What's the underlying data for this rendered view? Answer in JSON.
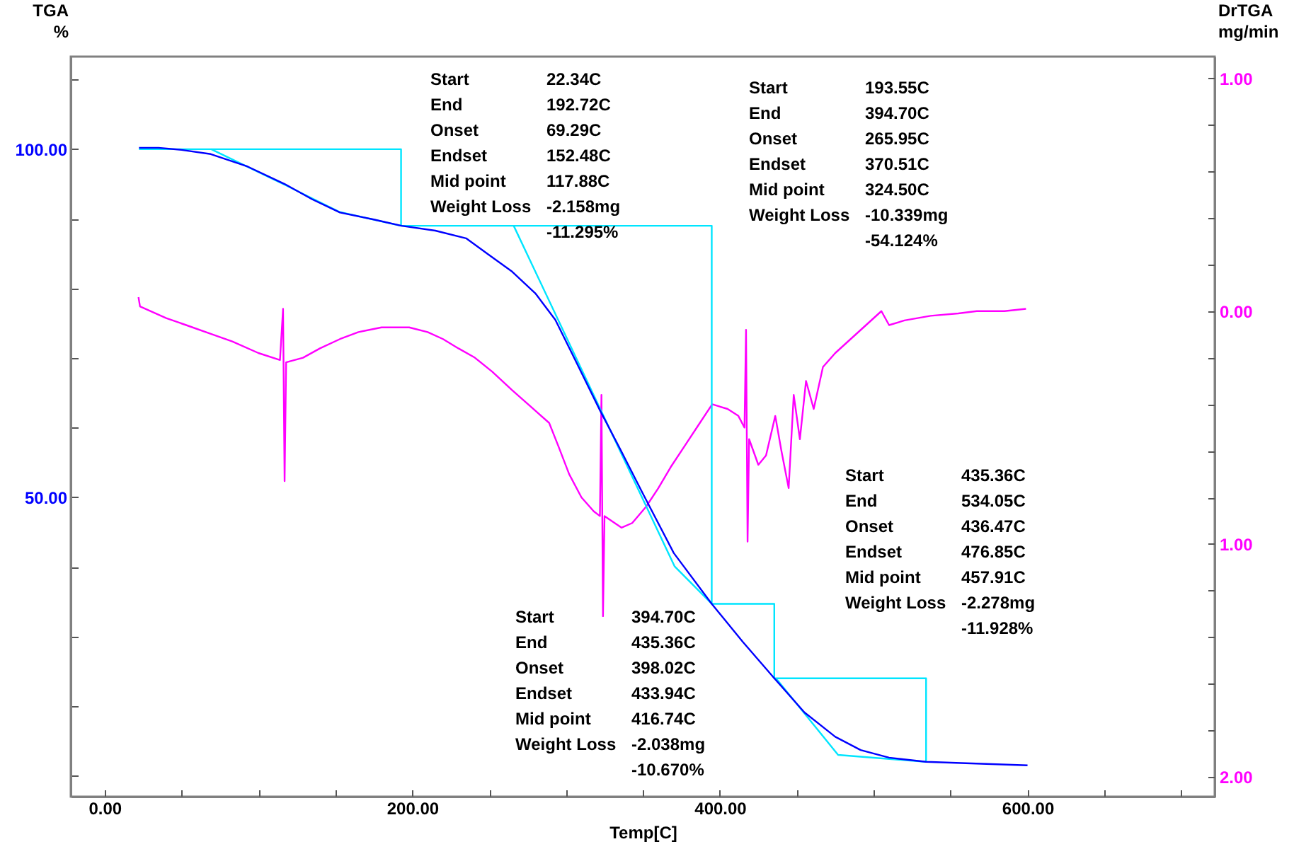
{
  "chart_data": {
    "type": "line",
    "xlabel": "Temp[C]",
    "ylabel": "TGA %",
    "y2label": "DrTGA mg/min",
    "xlim": [
      -22,
      721.7
    ],
    "xticks": [
      {
        "value": 0,
        "label": "0.00"
      },
      {
        "value": 50,
        "label": null
      },
      {
        "value": 100,
        "label": null
      },
      {
        "value": 150,
        "label": null
      },
      {
        "value": 200,
        "label": "200.00"
      },
      {
        "value": 250,
        "label": null
      },
      {
        "value": 300,
        "label": null
      },
      {
        "value": 350,
        "label": null
      },
      {
        "value": 400,
        "label": "400.00"
      },
      {
        "value": 450,
        "label": null
      },
      {
        "value": 500,
        "label": null
      },
      {
        "value": 550,
        "label": null
      },
      {
        "value": 600,
        "label": "600.00"
      },
      {
        "value": 650,
        "label": null
      },
      {
        "value": 700,
        "label": null
      }
    ],
    "ylim": [
      7.0,
      113.3
    ],
    "yticks": [
      {
        "value": 10,
        "label": null
      },
      {
        "value": 20,
        "label": null
      },
      {
        "value": 30,
        "label": null
      },
      {
        "value": 40,
        "label": null
      },
      {
        "value": 50,
        "label": "50.00"
      },
      {
        "value": 60,
        "label": null
      },
      {
        "value": 70,
        "label": null
      },
      {
        "value": 80,
        "label": null
      },
      {
        "value": 90,
        "label": null
      },
      {
        "value": 100,
        "label": "100.00"
      },
      {
        "value": 110,
        "label": null
      }
    ],
    "y2lim": [
      -2.085,
      1.093
    ],
    "y2ticks": [
      {
        "value": -2,
        "label": "2.00"
      },
      {
        "value": -1.8,
        "label": null
      },
      {
        "value": -1.6,
        "label": null
      },
      {
        "value": -1.4,
        "label": null
      },
      {
        "value": -1.2,
        "label": null
      },
      {
        "value": -1,
        "label": "1.00"
      },
      {
        "value": -0.8,
        "label": null
      },
      {
        "value": -0.6,
        "label": null
      },
      {
        "value": -0.4,
        "label": null
      },
      {
        "value": -0.2,
        "label": null
      },
      {
        "value": 0,
        "label": "0.00"
      },
      {
        "value": 0.2,
        "label": null
      },
      {
        "value": 0.4,
        "label": null
      },
      {
        "value": 0.6,
        "label": null
      },
      {
        "value": 0.8,
        "label": null
      },
      {
        "value": 1,
        "label": "1.00"
      }
    ],
    "annotations": [
      "Start\t22.34C\nEnd\t192.72C\nOnset\t69.29C\nEndset\t152.48C\nMid point\t117.88C\nWeight Loss\t-2.158mg\n\t-11.295%",
      "Start\t193.55C\nEnd\t394.70C\nOnset\t265.95C\nEndset\t370.51C\nMid point\t324.50C\nWeight Loss\t-10.339mg\n\t-54.124%",
      "Start\t435.36C\nEnd\t534.05C\nOnset\t436.47C\nEndset\t476.85C\nMid point\t457.91C\nWeight Loss\t-2.278mg\n\t-11.928%",
      "Start\t394.70C\nEnd\t435.36C\nOnset\t398.02C\nEndset\t433.94C\nMid point\t416.74C\nWeight Loss\t-2.038mg\n\t-10.670%"
    ],
    "series": [
      {
        "color": "#00e5ff",
        "x": [
          22.34,
          192.72,
          192.72,
          394.7,
          394.7,
          435.36,
          435.36,
          534.05,
          534.05
        ],
        "values": [
          100,
          100,
          89.0,
          89.0,
          34.7,
          34.7,
          24.0,
          24.0,
          12.0
        ]
      },
      {
        "color": "#00e5ff",
        "x": [
          69.29,
          117.88,
          152.48,
          192.72
        ],
        "values": [
          100,
          94.8,
          91.0,
          89.0
        ]
      },
      {
        "color": "#00e5ff",
        "x": [
          265.95,
          370.51,
          394.7
        ],
        "values": [
          89.0,
          40.1,
          34.7
        ]
      },
      {
        "color": "#00e5ff",
        "x": [
          436.47,
          476.85,
          534.05
        ],
        "values": [
          24.0,
          13.0,
          12.0
        ]
      },
      {
        "color": "#0000ff",
        "x": [
          22.34,
          35,
          50,
          69,
          93,
          117,
          135,
          153,
          175,
          193,
          215,
          235,
          250,
          265,
          280,
          293,
          304,
          322,
          335,
          350,
          370,
          394.7,
          415,
          435.4,
          455,
          475,
          491.5,
          510,
          534,
          560,
          600
        ],
        "values": [
          100.2,
          100.2,
          99.9,
          99.3,
          97.5,
          95.0,
          92.8,
          90.9,
          89.9,
          89.0,
          88.3,
          87.2,
          84.8,
          82.4,
          79.3,
          75.5,
          70.6,
          62.5,
          57.0,
          50.5,
          42.0,
          34.7,
          29.2,
          24.0,
          19.1,
          15.6,
          13.7,
          12.6,
          12.0,
          11.8,
          11.5
        ]
      },
      {
        "color": "#ff00ff",
        "axis": "y2",
        "x": [
          22,
          23,
          40,
          53,
          70,
          83,
          100,
          114,
          116,
          117,
          118,
          129,
          140,
          153,
          165,
          180,
          198,
          210,
          220,
          230,
          240.7,
          252,
          265,
          277,
          289,
          295,
          302,
          310,
          318,
          322,
          323,
          324,
          325,
          336,
          343,
          352,
          360,
          368,
          378,
          386,
          395,
          405,
          412,
          416,
          417,
          418,
          419,
          425,
          430,
          436,
          440,
          444.7,
          448,
          452,
          456,
          461,
          467,
          475,
          485,
          495,
          505,
          510,
          520,
          537,
          555,
          567,
          585,
          599
        ],
        "values": [
          0.06,
          0.02,
          -0.03,
          -0.06,
          -0.1,
          -0.13,
          -0.18,
          -0.21,
          0.01,
          -0.73,
          -0.22,
          -0.2,
          -0.16,
          -0.12,
          -0.09,
          -0.07,
          -0.07,
          -0.09,
          -0.12,
          -0.16,
          -0.2,
          -0.26,
          -0.34,
          -0.41,
          -0.48,
          -0.58,
          -0.7,
          -0.8,
          -0.86,
          -0.88,
          -0.36,
          -1.31,
          -0.88,
          -0.93,
          -0.91,
          -0.84,
          -0.76,
          -0.67,
          -0.57,
          -0.49,
          -0.4,
          -0.42,
          -0.45,
          -0.5,
          -0.08,
          -0.99,
          -0.55,
          -0.66,
          -0.62,
          -0.45,
          -0.6,
          -0.76,
          -0.36,
          -0.55,
          -0.3,
          -0.42,
          -0.24,
          -0.18,
          -0.12,
          -0.06,
          0.0,
          -0.06,
          -0.04,
          -0.02,
          -0.01,
          0.0,
          0.0,
          0.01
        ]
      }
    ]
  }
}
